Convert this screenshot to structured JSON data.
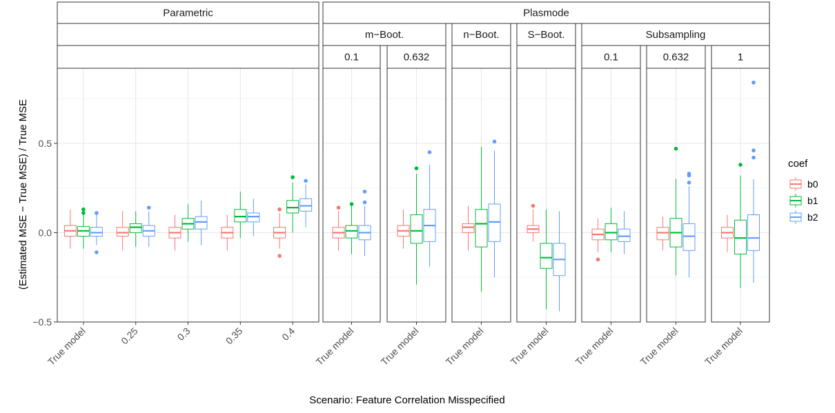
{
  "chart_data": {
    "type": "boxplot",
    "xlabel": "Scenario: Feature Correlation Misspecified",
    "ylabel": "(Estimated MSE − True MSE) / True MSE",
    "ylim": [
      -0.5,
      0.92
    ],
    "yticks": [
      -0.5,
      0.0,
      0.5
    ],
    "ytick_labels": [
      "−0.5",
      "0.0",
      "0.5"
    ],
    "grid": true,
    "legend": {
      "title": "coef",
      "position": "right",
      "entries": [
        {
          "name": "b0",
          "color": "#F8766D"
        },
        {
          "name": "b1",
          "color": "#00BA38"
        },
        {
          "name": "b2",
          "color": "#619CFF"
        }
      ]
    },
    "strips": {
      "level1": [
        {
          "label": "Parametric",
          "span": [
            0,
            0
          ]
        },
        {
          "label": "Plasmode",
          "span": [
            1,
            7
          ]
        }
      ],
      "level2": [
        {
          "label": "",
          "span": [
            0,
            0
          ]
        },
        {
          "label": "m−Boot.",
          "span": [
            1,
            2
          ]
        },
        {
          "label": "n−Boot.",
          "span": [
            3,
            3
          ]
        },
        {
          "label": "S−Boot.",
          "span": [
            4,
            4
          ]
        },
        {
          "label": "Subsampling",
          "span": [
            5,
            7
          ]
        }
      ],
      "level3": [
        "",
        "0.1",
        "0.632",
        "",
        "",
        "0.1",
        "0.632",
        "1"
      ]
    },
    "panels": [
      {
        "categories": [
          "True model",
          "0.25",
          "0.3",
          "0.35",
          "0.4"
        ],
        "boxes": {
          "b0": [
            {
              "min": -0.09,
              "q1": -0.02,
              "median": 0.01,
              "q3": 0.04,
              "max": 0.13,
              "outliers": []
            },
            {
              "min": -0.1,
              "q1": -0.02,
              "median": 0.0,
              "q3": 0.03,
              "max": 0.12,
              "outliers": []
            },
            {
              "min": -0.1,
              "q1": -0.03,
              "median": 0.0,
              "q3": 0.03,
              "max": 0.1,
              "outliers": []
            },
            {
              "min": -0.1,
              "q1": -0.03,
              "median": 0.0,
              "q3": 0.03,
              "max": 0.1,
              "outliers": []
            },
            {
              "min": -0.09,
              "q1": -0.03,
              "median": 0.0,
              "q3": 0.03,
              "max": 0.11,
              "outliers": [
                -0.13,
                0.13
              ]
            }
          ],
          "b1": [
            {
              "min": -0.09,
              "q1": -0.02,
              "median": 0.01,
              "q3": 0.035,
              "max": 0.1,
              "outliers": [
                0.11,
                0.13
              ]
            },
            {
              "min": -0.08,
              "q1": 0.0,
              "median": 0.03,
              "q3": 0.05,
              "max": 0.12,
              "outliers": []
            },
            {
              "min": -0.05,
              "q1": 0.02,
              "median": 0.05,
              "q3": 0.08,
              "max": 0.16,
              "outliers": []
            },
            {
              "min": -0.03,
              "q1": 0.06,
              "median": 0.09,
              "q3": 0.13,
              "max": 0.23,
              "outliers": []
            },
            {
              "min": 0.0,
              "q1": 0.11,
              "median": 0.14,
              "q3": 0.18,
              "max": 0.28,
              "outliers": [
                0.31
              ]
            }
          ],
          "b2": [
            {
              "min": -0.07,
              "q1": -0.02,
              "median": 0.0,
              "q3": 0.03,
              "max": 0.1,
              "outliers": [
                -0.11,
                0.11
              ]
            },
            {
              "min": -0.08,
              "q1": -0.02,
              "median": 0.01,
              "q3": 0.04,
              "max": 0.12,
              "outliers": [
                0.14
              ]
            },
            {
              "min": -0.07,
              "q1": 0.02,
              "median": 0.06,
              "q3": 0.09,
              "max": 0.18,
              "outliers": []
            },
            {
              "min": -0.02,
              "q1": 0.06,
              "median": 0.09,
              "q3": 0.11,
              "max": 0.19,
              "outliers": []
            },
            {
              "min": 0.03,
              "q1": 0.12,
              "median": 0.15,
              "q3": 0.19,
              "max": 0.27,
              "outliers": [
                0.29
              ]
            }
          ]
        }
      },
      {
        "categories": [
          "True model"
        ],
        "boxes": {
          "b0": [
            {
              "min": -0.1,
              "q1": -0.03,
              "median": 0.0,
              "q3": 0.03,
              "max": 0.12,
              "outliers": [
                0.14
              ]
            }
          ],
          "b1": [
            {
              "min": -0.12,
              "q1": -0.03,
              "median": 0.01,
              "q3": 0.04,
              "max": 0.15,
              "outliers": [
                0.16
              ]
            }
          ],
          "b2": [
            {
              "min": -0.13,
              "q1": -0.04,
              "median": 0.0,
              "q3": 0.04,
              "max": 0.15,
              "outliers": [
                0.17,
                0.23
              ]
            }
          ]
        }
      },
      {
        "categories": [
          "True model"
        ],
        "boxes": {
          "b0": [
            {
              "min": -0.09,
              "q1": -0.02,
              "median": 0.01,
              "q3": 0.04,
              "max": 0.13,
              "outliers": []
            }
          ],
          "b1": [
            {
              "min": -0.29,
              "q1": -0.06,
              "median": 0.01,
              "q3": 0.1,
              "max": 0.33,
              "outliers": [
                0.36
              ]
            }
          ],
          "b2": [
            {
              "min": -0.19,
              "q1": -0.05,
              "median": 0.04,
              "q3": 0.13,
              "max": 0.38,
              "outliers": [
                0.45
              ]
            }
          ]
        }
      },
      {
        "categories": [
          "True model"
        ],
        "boxes": {
          "b0": [
            {
              "min": -0.1,
              "q1": 0.0,
              "median": 0.03,
              "q3": 0.05,
              "max": 0.15,
              "outliers": []
            }
          ],
          "b1": [
            {
              "min": -0.33,
              "q1": -0.08,
              "median": 0.05,
              "q3": 0.13,
              "max": 0.48,
              "outliers": []
            }
          ],
          "b2": [
            {
              "min": -0.25,
              "q1": -0.05,
              "median": 0.06,
              "q3": 0.16,
              "max": 0.46,
              "outliers": [
                0.51
              ]
            }
          ]
        }
      },
      {
        "categories": [
          "True model"
        ],
        "boxes": {
          "b0": [
            {
              "min": -0.05,
              "q1": 0.0,
              "median": 0.02,
              "q3": 0.04,
              "max": 0.13,
              "outliers": [
                0.15
              ]
            }
          ],
          "b1": [
            {
              "min": -0.43,
              "q1": -0.2,
              "median": -0.14,
              "q3": -0.06,
              "max": 0.13,
              "outliers": []
            }
          ],
          "b2": [
            {
              "min": -0.44,
              "q1": -0.24,
              "median": -0.15,
              "q3": -0.06,
              "max": 0.12,
              "outliers": []
            }
          ]
        }
      },
      {
        "categories": [
          "True model"
        ],
        "boxes": {
          "b0": [
            {
              "min": -0.11,
              "q1": -0.04,
              "median": -0.01,
              "q3": 0.02,
              "max": 0.08,
              "outliers": [
                -0.15
              ]
            }
          ],
          "b1": [
            {
              "min": -0.11,
              "q1": -0.04,
              "median": 0.0,
              "q3": 0.05,
              "max": 0.14,
              "outliers": []
            }
          ],
          "b2": [
            {
              "min": -0.12,
              "q1": -0.05,
              "median": -0.02,
              "q3": 0.02,
              "max": 0.12,
              "outliers": []
            }
          ]
        }
      },
      {
        "categories": [
          "True model"
        ],
        "boxes": {
          "b0": [
            {
              "min": -0.1,
              "q1": -0.04,
              "median": 0.0,
              "q3": 0.03,
              "max": 0.09,
              "outliers": []
            }
          ],
          "b1": [
            {
              "min": -0.24,
              "q1": -0.08,
              "median": 0.0,
              "q3": 0.08,
              "max": 0.3,
              "outliers": [
                0.47
              ]
            }
          ],
          "b2": [
            {
              "min": -0.25,
              "q1": -0.1,
              "median": -0.02,
              "q3": 0.05,
              "max": 0.26,
              "outliers": [
                0.28,
                0.32,
                0.33
              ]
            }
          ]
        }
      },
      {
        "categories": [
          "True model"
        ],
        "boxes": {
          "b0": [
            {
              "min": -0.11,
              "q1": -0.03,
              "median": 0.0,
              "q3": 0.03,
              "max": 0.1,
              "outliers": []
            }
          ],
          "b1": [
            {
              "min": -0.31,
              "q1": -0.12,
              "median": -0.03,
              "q3": 0.07,
              "max": 0.32,
              "outliers": [
                0.38
              ]
            }
          ],
          "b2": [
            {
              "min": -0.28,
              "q1": -0.1,
              "median": -0.03,
              "q3": 0.1,
              "max": 0.3,
              "outliers": [
                0.42,
                0.46,
                0.84
              ]
            }
          ]
        }
      }
    ]
  }
}
